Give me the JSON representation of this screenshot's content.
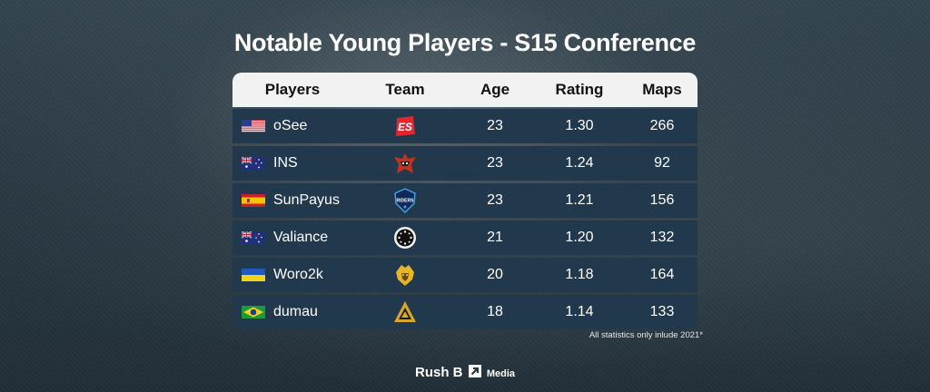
{
  "title": "Notable Young Players  -  S15 Conference",
  "headers": {
    "players": "Players",
    "team": "Team",
    "age": "Age",
    "rating": "Rating",
    "maps": "Maps"
  },
  "rows": [
    {
      "player": "oSee",
      "flag": "us-flag-icon",
      "team_logo": "extra-salt-logo",
      "age": "23",
      "rating": "1.30",
      "maps": "266"
    },
    {
      "player": "INS",
      "flag": "au-flag-icon",
      "team_logo": "renegades-logo",
      "age": "23",
      "rating": "1.24",
      "maps": "92"
    },
    {
      "player": "SunPayus",
      "flag": "es-flag-icon",
      "team_logo": "movistar-riders-logo",
      "age": "23",
      "rating": "1.21",
      "maps": "156"
    },
    {
      "player": "Valiance",
      "flag": "au-flag-icon",
      "team_logo": "ence-logo",
      "age": "21",
      "rating": "1.20",
      "maps": "132"
    },
    {
      "player": "Woro2k",
      "flag": "ua-flag-icon",
      "team_logo": "mad-lions-logo",
      "age": "20",
      "rating": "1.18",
      "maps": "164"
    },
    {
      "player": "dumau",
      "flag": "br-flag-icon",
      "team_logo": "imperial-logo",
      "age": "18",
      "rating": "1.14",
      "maps": "133"
    }
  ],
  "note": "All statistics only inlude 2021*",
  "brand": {
    "name": "Rush B",
    "suffix": "Media"
  }
}
